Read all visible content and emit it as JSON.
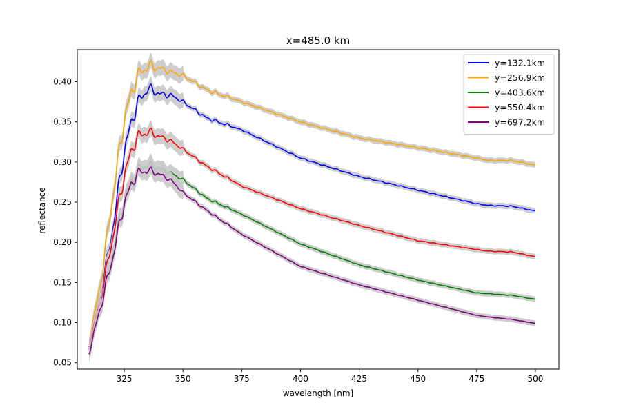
{
  "chart_data": {
    "type": "line",
    "title": "x=485.0 km",
    "xlabel": "wavelength [nm]",
    "ylabel": "reflectance",
    "xlim": [
      305,
      510
    ],
    "ylim": [
      0.042,
      0.44
    ],
    "xticks": [
      325,
      350,
      375,
      400,
      425,
      450,
      475,
      500
    ],
    "yticks": [
      0.05,
      0.1,
      0.15,
      0.2,
      0.25,
      0.3,
      0.35,
      0.4
    ],
    "ytick_labels": [
      "0.05",
      "0.10",
      "0.15",
      "0.20",
      "0.25",
      "0.30",
      "0.35",
      "0.40"
    ],
    "legend_position": "upper-right",
    "uncertainty_band_color": "#c8c8c8",
    "series": [
      {
        "name": "y=132.1km",
        "color": "#0000ff",
        "x": [
          310,
          315,
          320,
          325,
          330,
          335,
          340,
          345,
          350,
          360,
          375,
          400,
          425,
          450,
          475,
          480,
          490,
          500
        ],
        "values": [
          0.072,
          0.135,
          0.215,
          0.315,
          0.37,
          0.392,
          0.385,
          0.383,
          0.375,
          0.355,
          0.34,
          0.305,
          0.282,
          0.265,
          0.248,
          0.246,
          0.245,
          0.239
        ]
      },
      {
        "name": "y=256.9km",
        "color": "#ffa500",
        "x": [
          310,
          315,
          320,
          325,
          330,
          335,
          340,
          345,
          350,
          360,
          375,
          400,
          425,
          450,
          475,
          480,
          490,
          500
        ],
        "values": [
          0.075,
          0.15,
          0.255,
          0.355,
          0.405,
          0.42,
          0.417,
          0.412,
          0.408,
          0.39,
          0.375,
          0.35,
          0.33,
          0.318,
          0.305,
          0.302,
          0.302,
          0.296
        ]
      },
      {
        "name": "y=403.6km",
        "color": "#008000",
        "x": [
          310,
          315,
          320,
          325,
          330,
          335,
          340,
          345,
          350,
          360,
          375,
          400,
          425,
          450,
          475,
          480,
          490,
          500
        ],
        "values": [
          0.068,
          0.122,
          0.185,
          0.255,
          0.288,
          0.297,
          0.292,
          0.286,
          0.278,
          0.255,
          0.235,
          0.198,
          0.172,
          0.153,
          0.137,
          0.136,
          0.134,
          0.129
        ]
      },
      {
        "name": "y=550.4km",
        "color": "#ff0000",
        "x": [
          310,
          315,
          320,
          325,
          330,
          335,
          340,
          345,
          350,
          360,
          375,
          400,
          425,
          450,
          475,
          480,
          490,
          500
        ],
        "values": [
          0.07,
          0.128,
          0.205,
          0.285,
          0.33,
          0.338,
          0.332,
          0.326,
          0.316,
          0.295,
          0.27,
          0.242,
          0.221,
          0.202,
          0.191,
          0.189,
          0.188,
          0.182
        ]
      },
      {
        "name": "y=697.2km",
        "color": "#800080",
        "x": [
          310,
          315,
          320,
          325,
          330,
          335,
          340,
          345,
          350,
          360,
          375,
          400,
          425,
          450,
          475,
          480,
          490,
          500
        ],
        "values": [
          0.063,
          0.12,
          0.18,
          0.25,
          0.285,
          0.29,
          0.285,
          0.277,
          0.262,
          0.24,
          0.21,
          0.17,
          0.147,
          0.128,
          0.109,
          0.107,
          0.104,
          0.099
        ]
      }
    ]
  }
}
